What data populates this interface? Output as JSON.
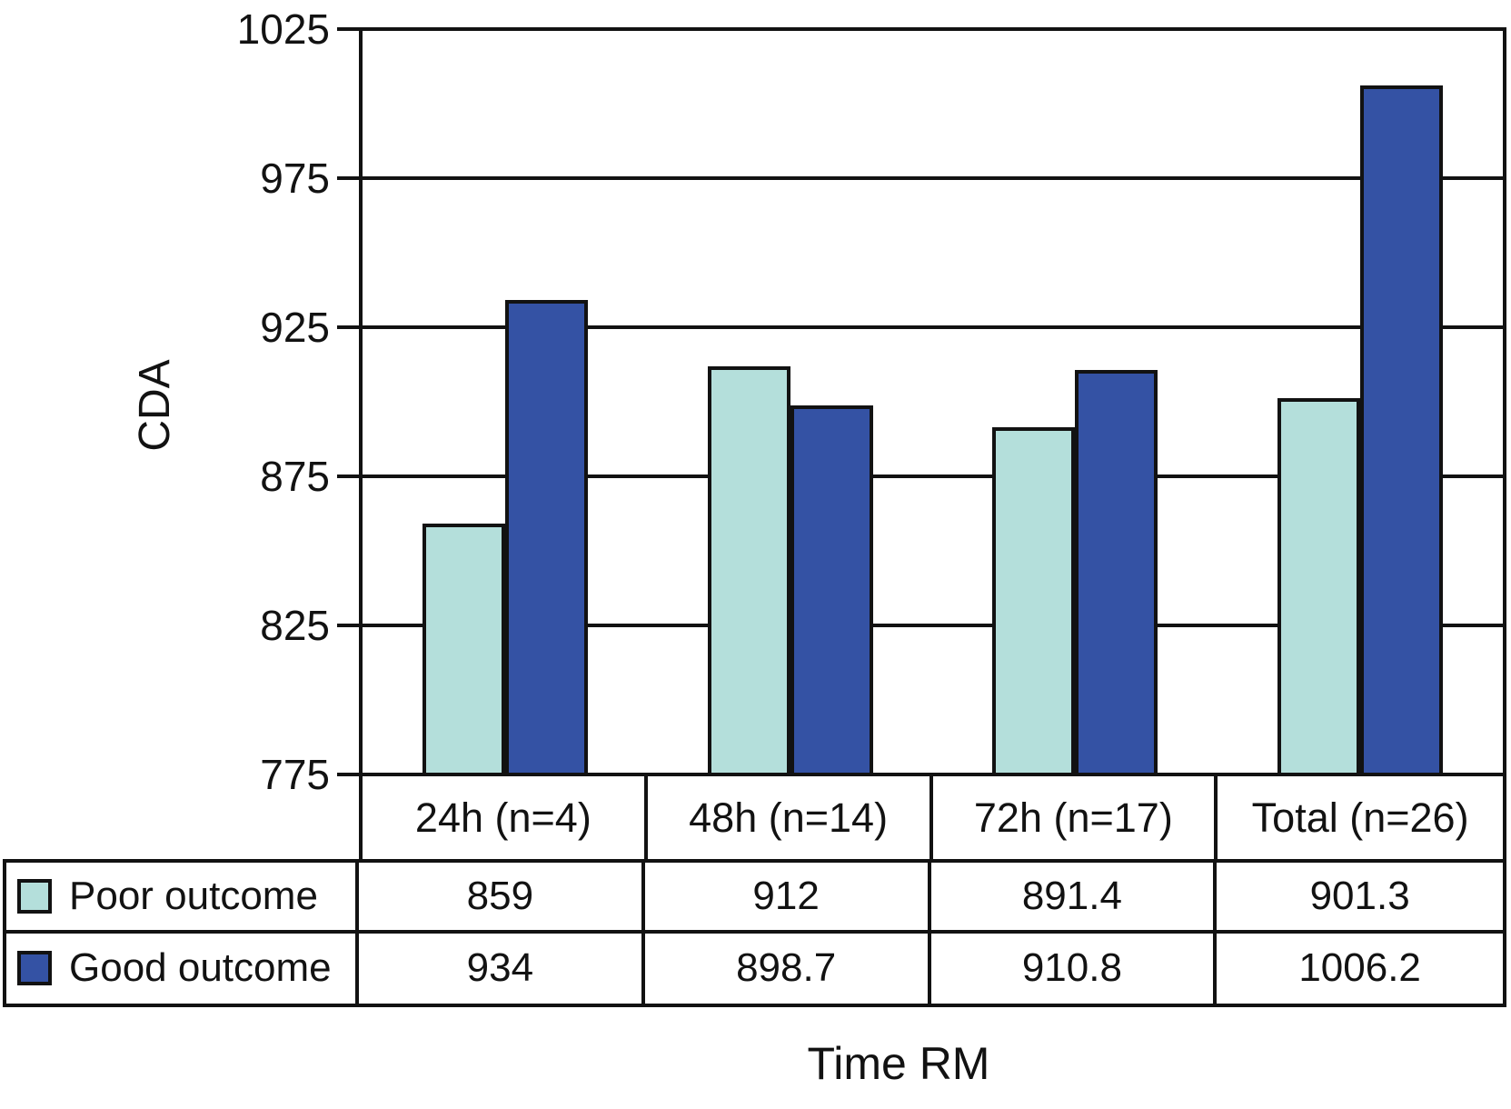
{
  "chart_data": {
    "type": "bar",
    "title": "",
    "ylabel": "CDA",
    "xlabel": "Time RM",
    "ylim": [
      775,
      1025
    ],
    "ytick_step": 50,
    "yticks": [
      "1025",
      "975",
      "925",
      "875",
      "825",
      "775"
    ],
    "categories": [
      "24h (n=4)",
      "48h (n=14)",
      "72h (n=17)",
      "Total (n=26)"
    ],
    "series": [
      {
        "name": "Poor outcome",
        "color": "#b4dfdb",
        "values": [
          859,
          912,
          891.4,
          901.3
        ]
      },
      {
        "name": "Good outcome",
        "color": "#3452a4",
        "values": [
          934,
          898.7,
          910.8,
          1006.2
        ]
      }
    ],
    "grid": true,
    "line_color": "#121212",
    "legend_position": "table-left"
  }
}
